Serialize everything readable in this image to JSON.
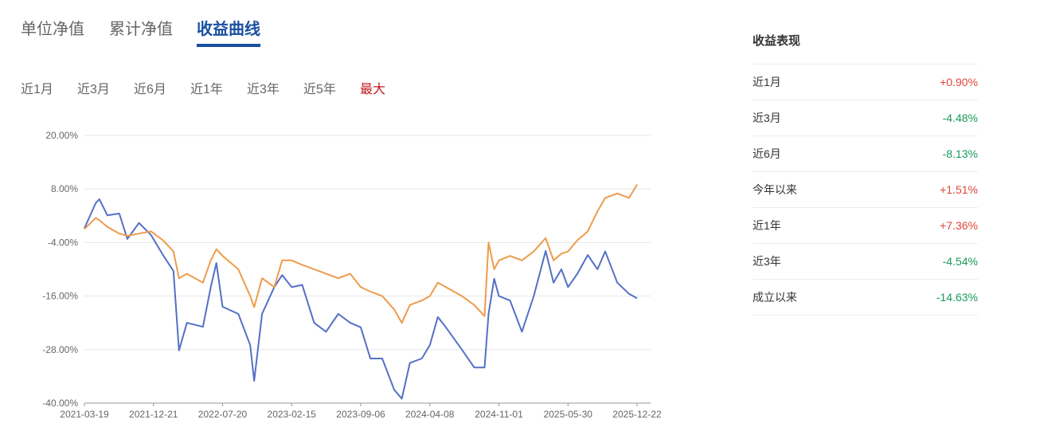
{
  "tabs": [
    "单位净值",
    "累计净值",
    "收益曲线"
  ],
  "active_tab": 2,
  "periods": [
    "近1月",
    "近3月",
    "近6月",
    "近1年",
    "近3年",
    "近5年",
    "最大"
  ],
  "active_period": 6,
  "chart_data": {
    "type": "line",
    "x": [
      "2021-03-19",
      "2021-05-03",
      "2021-05-18",
      "2021-06-19",
      "2021-08-06",
      "2021-09-07",
      "2021-10-24",
      "2021-12-11",
      "2022-01-19",
      "2022-02-20",
      "2022-03-09",
      "2022-04-02",
      "2022-05-21",
      "2022-06-14",
      "2022-07-01",
      "2022-07-20",
      "2022-09-06",
      "2022-10-12",
      "2022-10-24",
      "2022-11-17",
      "2022-12-24",
      "2023-01-17",
      "2023-02-15",
      "2023-03-18",
      "2023-04-22",
      "2023-05-27",
      "2023-07-02",
      "2023-08-06",
      "2023-09-06",
      "2023-10-06",
      "2023-11-12",
      "2023-12-19",
      "2024-01-12",
      "2024-02-06",
      "2024-03-14",
      "2024-04-08",
      "2024-05-02",
      "2024-05-26",
      "2024-07-13",
      "2024-08-19",
      "2024-09-19",
      "2024-10-01",
      "2024-10-18",
      "2024-11-01",
      "2024-12-05",
      "2025-01-10",
      "2025-02-15",
      "2025-03-23",
      "2025-04-16",
      "2025-05-10",
      "2025-05-30",
      "2025-06-27",
      "2025-07-28",
      "2025-08-26",
      "2025-09-18",
      "2025-10-24",
      "2025-11-28",
      "2025-12-22"
    ],
    "series": [
      {
        "color": "#5470c6",
        "values": [
          -0.8,
          4.8,
          5.7,
          2.1,
          2.5,
          -3.2,
          0.4,
          -2.3,
          -6.8,
          -10.4,
          -28.2,
          -22,
          -22.9,
          -14,
          -8.6,
          -18.4,
          -20,
          -27,
          -35,
          -20,
          -14,
          -11.3,
          -14,
          -13.5,
          -22,
          -24,
          -20,
          -22,
          -23,
          -30,
          -30,
          -37,
          -39,
          -31,
          -30,
          -27,
          -20.7,
          -23,
          -28,
          -32,
          -32,
          -20,
          -12.1,
          -16,
          -17,
          -24,
          -16,
          -5.9,
          -13,
          -10,
          -14,
          -11,
          -6.8,
          -10,
          -6,
          -13,
          -15.5,
          -16.5
        ]
      },
      {
        "color": "#ee9b4c",
        "values": [
          -1,
          1.5,
          1,
          -0.5,
          -2,
          -2.5,
          -2,
          -1.5,
          -3.5,
          -6,
          -12,
          -11,
          -13,
          -8,
          -5.5,
          -7,
          -10,
          -16,
          -18.5,
          -12,
          -14,
          -8,
          -8,
          -9,
          -10,
          -11,
          -12,
          -11,
          -14,
          -15,
          -16,
          -19,
          -22,
          -18,
          -17,
          -16,
          -13,
          -14,
          -16,
          -18,
          -20.5,
          -4,
          -10,
          -8,
          -7,
          -8,
          -6,
          -3,
          -8,
          -6.5,
          -6,
          -3.5,
          -1.5,
          3,
          6,
          7,
          6,
          9
        ]
      }
    ],
    "ylim": [
      -40,
      20
    ],
    "yticks": [
      {
        "value": 20,
        "label": "20.00%"
      },
      {
        "value": 8,
        "label": "8.00%"
      },
      {
        "value": -4,
        "label": "-4.00%"
      },
      {
        "value": -16,
        "label": "-16.00%"
      },
      {
        "value": -28,
        "label": "-28.00%"
      },
      {
        "value": -40,
        "label": "-40.00%"
      }
    ],
    "xticks": [
      "2021-03-19",
      "2021-12-21",
      "2022-07-20",
      "2023-02-15",
      "2023-09-06",
      "2024-04-08",
      "2024-11-01",
      "2025-05-30",
      "2025-12-22"
    ],
    "grid": true
  },
  "performance": {
    "title": "收益表现",
    "rows": [
      [
        "近1月",
        "+0.90%"
      ],
      [
        "近3月",
        "-4.48%"
      ],
      [
        "近6月",
        "-8.13%"
      ],
      [
        "今年以来",
        "+1.51%"
      ],
      [
        "近1年",
        "+7.36%"
      ],
      [
        "近3年",
        "-4.54%"
      ],
      [
        "成立以来",
        "-14.63%"
      ]
    ]
  }
}
